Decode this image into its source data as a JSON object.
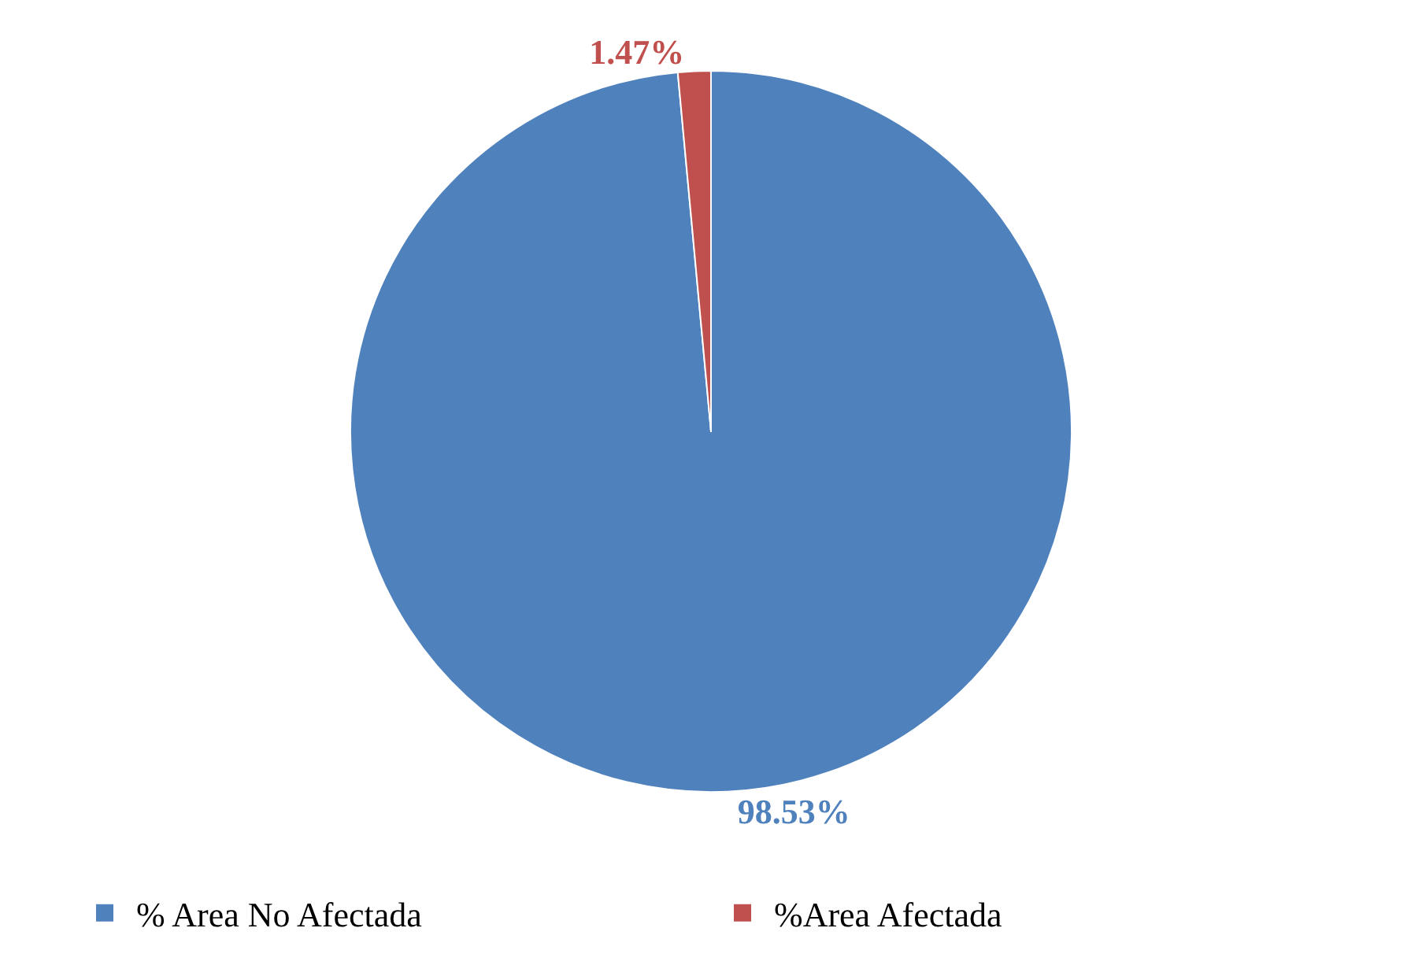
{
  "chart_data": {
    "type": "pie",
    "categories": [
      "% Area No Afectada",
      "%Area Afectada"
    ],
    "values": [
      98.53,
      1.47
    ],
    "colors": [
      "#4f81bd",
      "#c0504d"
    ],
    "value_labels": [
      "98.53%",
      "1.47%"
    ],
    "legend": "bottom"
  }
}
